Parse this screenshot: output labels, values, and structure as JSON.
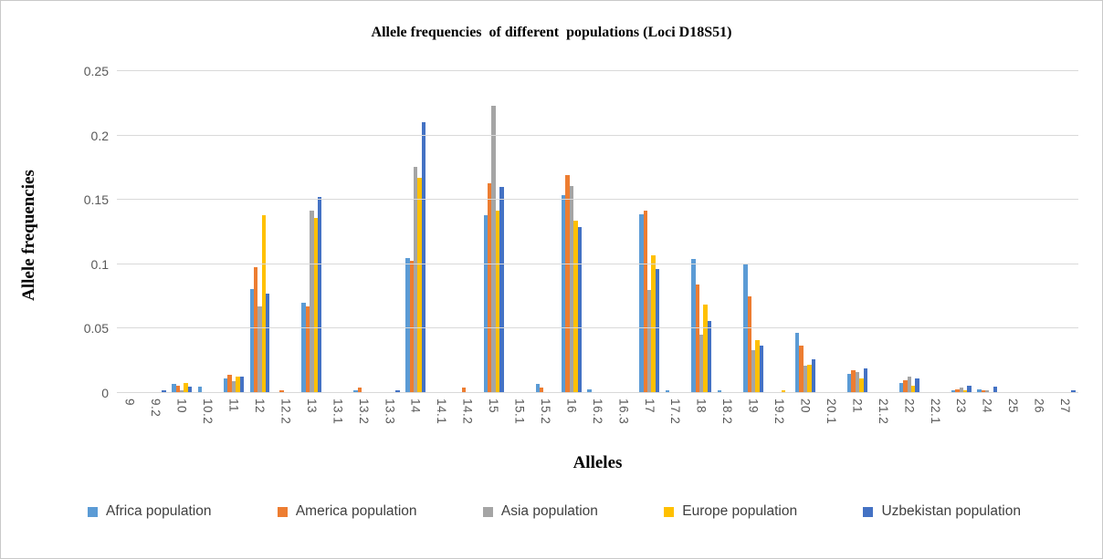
{
  "title": "Allele frequencies  of different  populations (Loci D18S51)",
  "y_axis": {
    "title": "Allele frequencies"
  },
  "x_axis": {
    "title": "Alleles"
  },
  "chart_data": {
    "type": "bar",
    "title": "Allele frequencies  of different  populations (Loci D18S51)",
    "xlabel": "Alleles",
    "ylabel": "Allele frequencies",
    "ylim": [
      0,
      0.25
    ],
    "grid": true,
    "legend_position": "bottom",
    "gridline_color": "#d9d9d9",
    "yticks": [
      {
        "value": 0,
        "label": "0"
      },
      {
        "value": 0.05,
        "label": "0.05"
      },
      {
        "value": 0.1,
        "label": "0.1"
      },
      {
        "value": 0.15,
        "label": "0.15"
      },
      {
        "value": 0.2,
        "label": "0.2"
      },
      {
        "value": 0.25,
        "label": "0.25"
      }
    ],
    "categories": [
      "9",
      "9.2",
      "10",
      "10.2",
      "11",
      "12",
      "12.2",
      "13",
      "13.1",
      "13.2",
      "13.3",
      "14",
      "14.1",
      "14.2",
      "15",
      "15.1",
      "15.2",
      "16",
      "16.2",
      "16.3",
      "17",
      "17.2",
      "18",
      "18.2",
      "19",
      "19.2",
      "20",
      "20.1",
      "21",
      "21.2",
      "22",
      "22.1",
      "23",
      "24",
      "25",
      "26",
      "27"
    ],
    "series": [
      {
        "name": "Africa population",
        "color": "#5B9BD5",
        "values": [
          0.001,
          0,
          0.007,
          0.005,
          0.011,
          0.081,
          0,
          0.07,
          0,
          0.002,
          0,
          0.105,
          0,
          0.001,
          0.138,
          0,
          0.007,
          0.154,
          0.003,
          0.001,
          0.139,
          0.002,
          0.104,
          0.002,
          0.1,
          0,
          0.047,
          0,
          0.015,
          0.001,
          0.008,
          0,
          0.002,
          0.003,
          0,
          0,
          0
        ]
      },
      {
        "name": "America population",
        "color": "#ED7D31",
        "values": [
          0.001,
          0,
          0.006,
          0.001,
          0.014,
          0.098,
          0.002,
          0.067,
          0,
          0.004,
          0,
          0.103,
          0,
          0.004,
          0.163,
          0,
          0.004,
          0.169,
          0,
          0,
          0.142,
          0,
          0.084,
          0,
          0.075,
          0,
          0.037,
          0,
          0.018,
          0.001,
          0.01,
          0,
          0.003,
          0.002,
          0,
          0,
          0
        ]
      },
      {
        "name": "Asia population",
        "color": "#A5A5A5",
        "values": [
          0.001,
          0,
          0.002,
          0,
          0.009,
          0.067,
          0,
          0.142,
          0,
          0,
          0,
          0.176,
          0.001,
          0,
          0.223,
          0.001,
          0,
          0.161,
          0.001,
          0,
          0.08,
          0.001,
          0.045,
          0,
          0.033,
          0,
          0.021,
          0,
          0.016,
          0,
          0.013,
          0,
          0.004,
          0.002,
          0.001,
          0.001,
          0
        ]
      },
      {
        "name": "Europe population",
        "color": "#FFC000",
        "values": [
          0.001,
          0,
          0.008,
          0,
          0.013,
          0.138,
          0,
          0.136,
          0,
          0,
          0,
          0.167,
          0,
          0,
          0.142,
          0,
          0.001,
          0.134,
          0.001,
          0,
          0.107,
          0,
          0.069,
          0,
          0.041,
          0.002,
          0.022,
          0.001,
          0.011,
          0,
          0.006,
          0.001,
          0.002,
          0,
          0.001,
          0,
          0
        ]
      },
      {
        "name": "Uzbekistan population",
        "color": "#4472C4",
        "values": [
          0.001,
          0.002,
          0.005,
          0,
          0.013,
          0.077,
          0,
          0.152,
          0.001,
          0,
          0.002,
          0.21,
          0,
          0,
          0.16,
          0,
          0,
          0.129,
          0,
          0,
          0.096,
          0,
          0.056,
          0,
          0.037,
          0,
          0.026,
          0,
          0.019,
          0,
          0.011,
          0,
          0.006,
          0.005,
          0.001,
          0,
          0.002
        ]
      }
    ]
  }
}
